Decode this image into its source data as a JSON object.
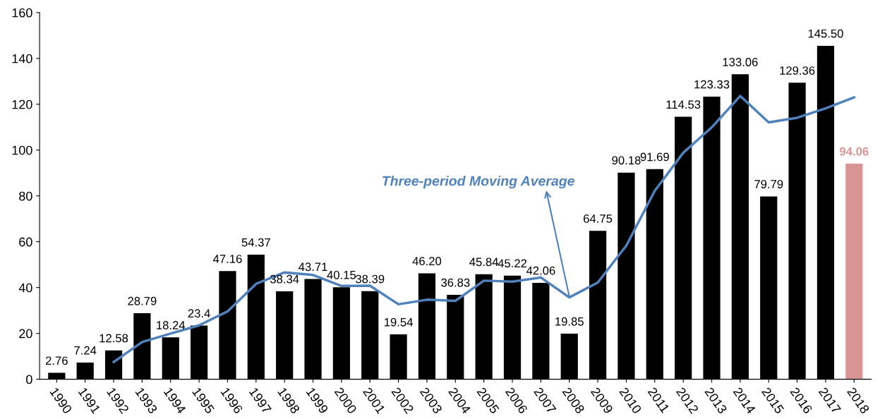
{
  "chart_data": {
    "type": "bar",
    "categories": [
      "1990",
      "1991",
      "1992",
      "1993",
      "1994",
      "1995",
      "1996",
      "1997",
      "1998",
      "1999",
      "2000",
      "2001",
      "2002",
      "2003",
      "2004",
      "2005",
      "2006",
      "2007",
      "2008",
      "2009",
      "2010",
      "2011",
      "2012",
      "2013",
      "2014",
      "2015",
      "2016",
      "2017",
      "2018"
    ],
    "series": [
      {
        "colors": [
          "#000000",
          "#000000",
          "#000000",
          "#000000",
          "#000000",
          "#000000",
          "#000000",
          "#000000",
          "#000000",
          "#000000",
          "#000000",
          "#000000",
          "#000000",
          "#000000",
          "#000000",
          "#000000",
          "#000000",
          "#000000",
          "#000000",
          "#000000",
          "#000000",
          "#000000",
          "#000000",
          "#000000",
          "#000000",
          "#000000",
          "#000000",
          "#000000",
          "#d99594"
        ],
        "values": [
          2.76,
          7.24,
          12.58,
          28.79,
          18.24,
          23.4,
          47.16,
          54.37,
          38.34,
          43.71,
          40.15,
          38.39,
          19.54,
          46.2,
          36.83,
          45.84,
          45.22,
          42.06,
          19.85,
          64.75,
          90.18,
          91.69,
          114.53,
          123.33,
          133.06,
          79.79,
          129.36,
          145.5,
          94.06
        ],
        "value_labels": [
          "2.76",
          "7.24",
          "12.58",
          "28.79",
          "18.24",
          "23.4",
          "47.16",
          "54.37",
          "38.34",
          "43.71",
          "40.15",
          "38.39",
          "19.54",
          "46.20",
          "36.83",
          "45.84",
          "45.22",
          "42.06",
          "19.85",
          "64.75",
          "90.18",
          "91.69",
          "114.53",
          "123.33",
          "133.06",
          "79.79",
          "129.36",
          "145.50",
          "94.06"
        ]
      },
      {
        "type": "line",
        "color": "#4f81bd",
        "values": [
          null,
          null,
          7.5,
          16.2,
          19.9,
          23.5,
          29.6,
          41.6,
          46.6,
          45.5,
          40.7,
          40.8,
          32.7,
          34.7,
          34.2,
          43.0,
          42.6,
          44.4,
          35.7,
          42.2,
          58.3,
          82.2,
          98.8,
          109.9,
          123.6,
          112.1,
          114.1,
          118.2,
          123.0
        ]
      }
    ],
    "ylim": [
      0,
      160
    ],
    "yticks": [
      0,
      20,
      40,
      60,
      80,
      100,
      120,
      140,
      160
    ],
    "grid": false,
    "legend": false,
    "annotations": [
      {
        "text": "Three-period Moving Average",
        "x": "2008",
        "y": 36
      }
    ]
  }
}
